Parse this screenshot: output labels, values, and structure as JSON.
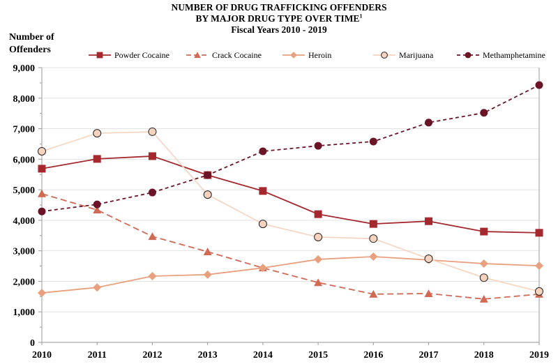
{
  "chart_data": {
    "type": "line",
    "title": "NUMBER OF DRUG TRAFFICKING OFFENDERS",
    "title_line2": "BY MAJOR DRUG TYPE OVER TIME",
    "title_footnote": "1",
    "subtitle": "Fiscal Years 2010 - 2019",
    "ylabel_line1": "Number of",
    "ylabel_line2": "Offenders",
    "xlabel": "",
    "x": [
      "2010",
      "2011",
      "2012",
      "2013",
      "2014",
      "2015",
      "2016",
      "2017",
      "2018",
      "2019"
    ],
    "ylim": [
      0,
      9000
    ],
    "yticks": [
      0,
      1000,
      2000,
      3000,
      4000,
      5000,
      6000,
      7000,
      8000,
      9000
    ],
    "ytick_labels": [
      "0",
      "1,000",
      "2,000",
      "3,000",
      "4,000",
      "5,000",
      "6,000",
      "7,000",
      "8,000",
      "9,000"
    ],
    "grid": true,
    "legend_position": "top",
    "series": [
      {
        "name": "Powder Cocaine",
        "color": "#a4282e",
        "marker": "square",
        "dash": "solid",
        "values": [
          5690,
          6010,
          6100,
          5480,
          4960,
          4200,
          3880,
          3970,
          3630,
          3590
        ]
      },
      {
        "name": "Crack Cocaine",
        "color": "#d06a55",
        "marker": "triangle",
        "dash": "dashed",
        "values": [
          4870,
          4340,
          3470,
          2970,
          2440,
          1960,
          1580,
          1600,
          1420,
          1580
        ]
      },
      {
        "name": "Heroin",
        "color": "#e8a07e",
        "marker": "diamond",
        "dash": "solid",
        "values": [
          1620,
          1800,
          2170,
          2220,
          2440,
          2720,
          2810,
          2700,
          2580,
          2510
        ]
      },
      {
        "name": "Marijuana",
        "color": "#f6d3be",
        "marker": "circle-open",
        "dash": "solid",
        "values": [
          6260,
          6850,
          6900,
          4840,
          3880,
          3450,
          3400,
          2740,
          2120,
          1670
        ]
      },
      {
        "name": "Methamphetamine",
        "color": "#6b1426",
        "marker": "circle",
        "dash": "short-dash",
        "values": [
          4290,
          4520,
          4910,
          5480,
          6260,
          6440,
          6580,
          7200,
          7520,
          8430
        ]
      }
    ]
  }
}
